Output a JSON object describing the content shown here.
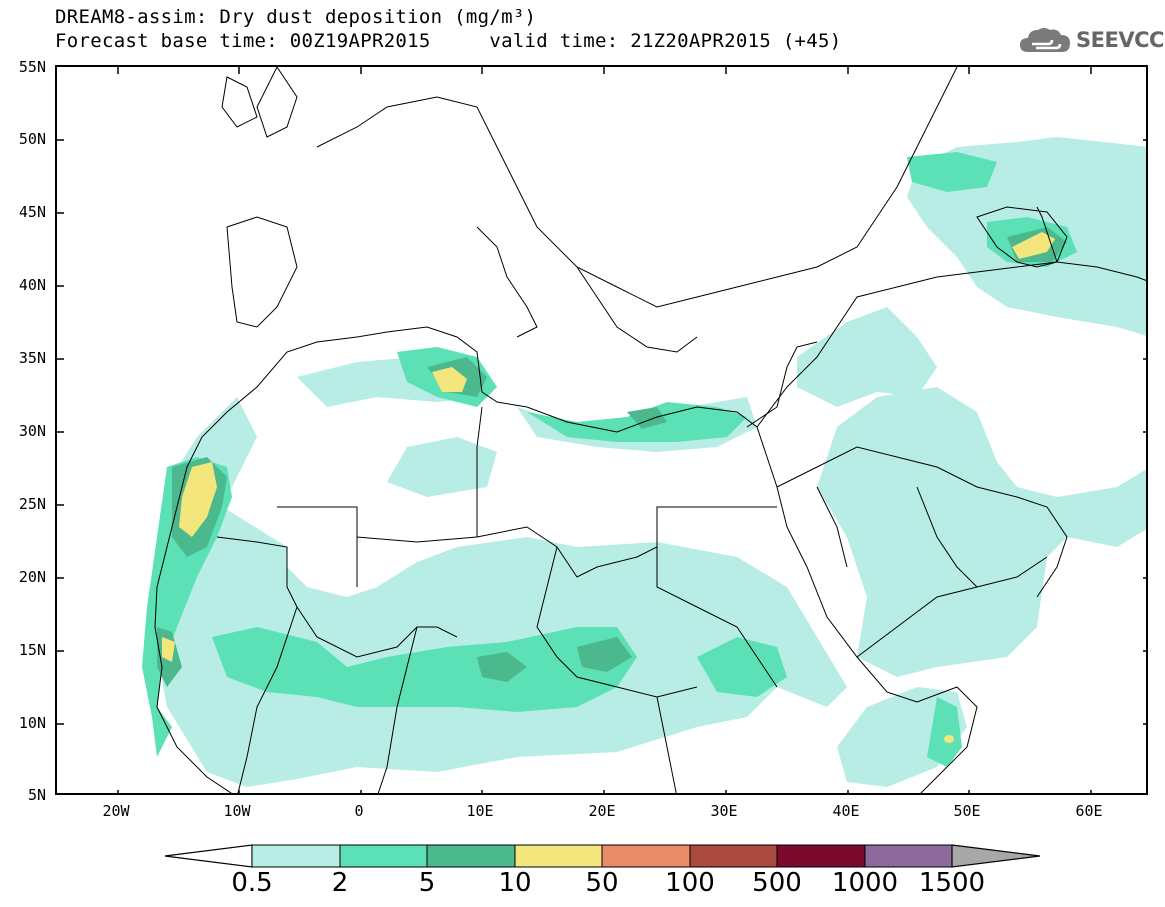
{
  "title": {
    "line1": "DREAM8-assim: Dry dust deposition (mg/m³)",
    "line2": "Forecast base time: 00Z19APR2015     valid time: 21Z20APR2015 (+45)"
  },
  "logo": {
    "text": "SEEVCCC",
    "icon": "cloud-icon"
  },
  "map": {
    "lat_labels": [
      "55N",
      "50N",
      "45N",
      "40N",
      "35N",
      "30N",
      "25N",
      "20N",
      "15N",
      "10N",
      "5N"
    ],
    "lon_labels": [
      "20W",
      "10W",
      "0",
      "10E",
      "20E",
      "30E",
      "40E",
      "50E",
      "60E"
    ],
    "colors": {
      "land_outline": "#000000",
      "background": "#ffffff"
    }
  },
  "colorbar": {
    "labels": [
      "0.5",
      "2",
      "5",
      "10",
      "50",
      "100",
      "500",
      "1000",
      "1500"
    ],
    "colors": [
      "#b7ede4",
      "#5ce0b5",
      "#4cb88d",
      "#f2e67d",
      "#e88c68",
      "#ab4a40",
      "#7c0a2c",
      "#8c6a9c"
    ],
    "under_color": "#ffffff",
    "over_color": "#a8a8a8"
  }
}
